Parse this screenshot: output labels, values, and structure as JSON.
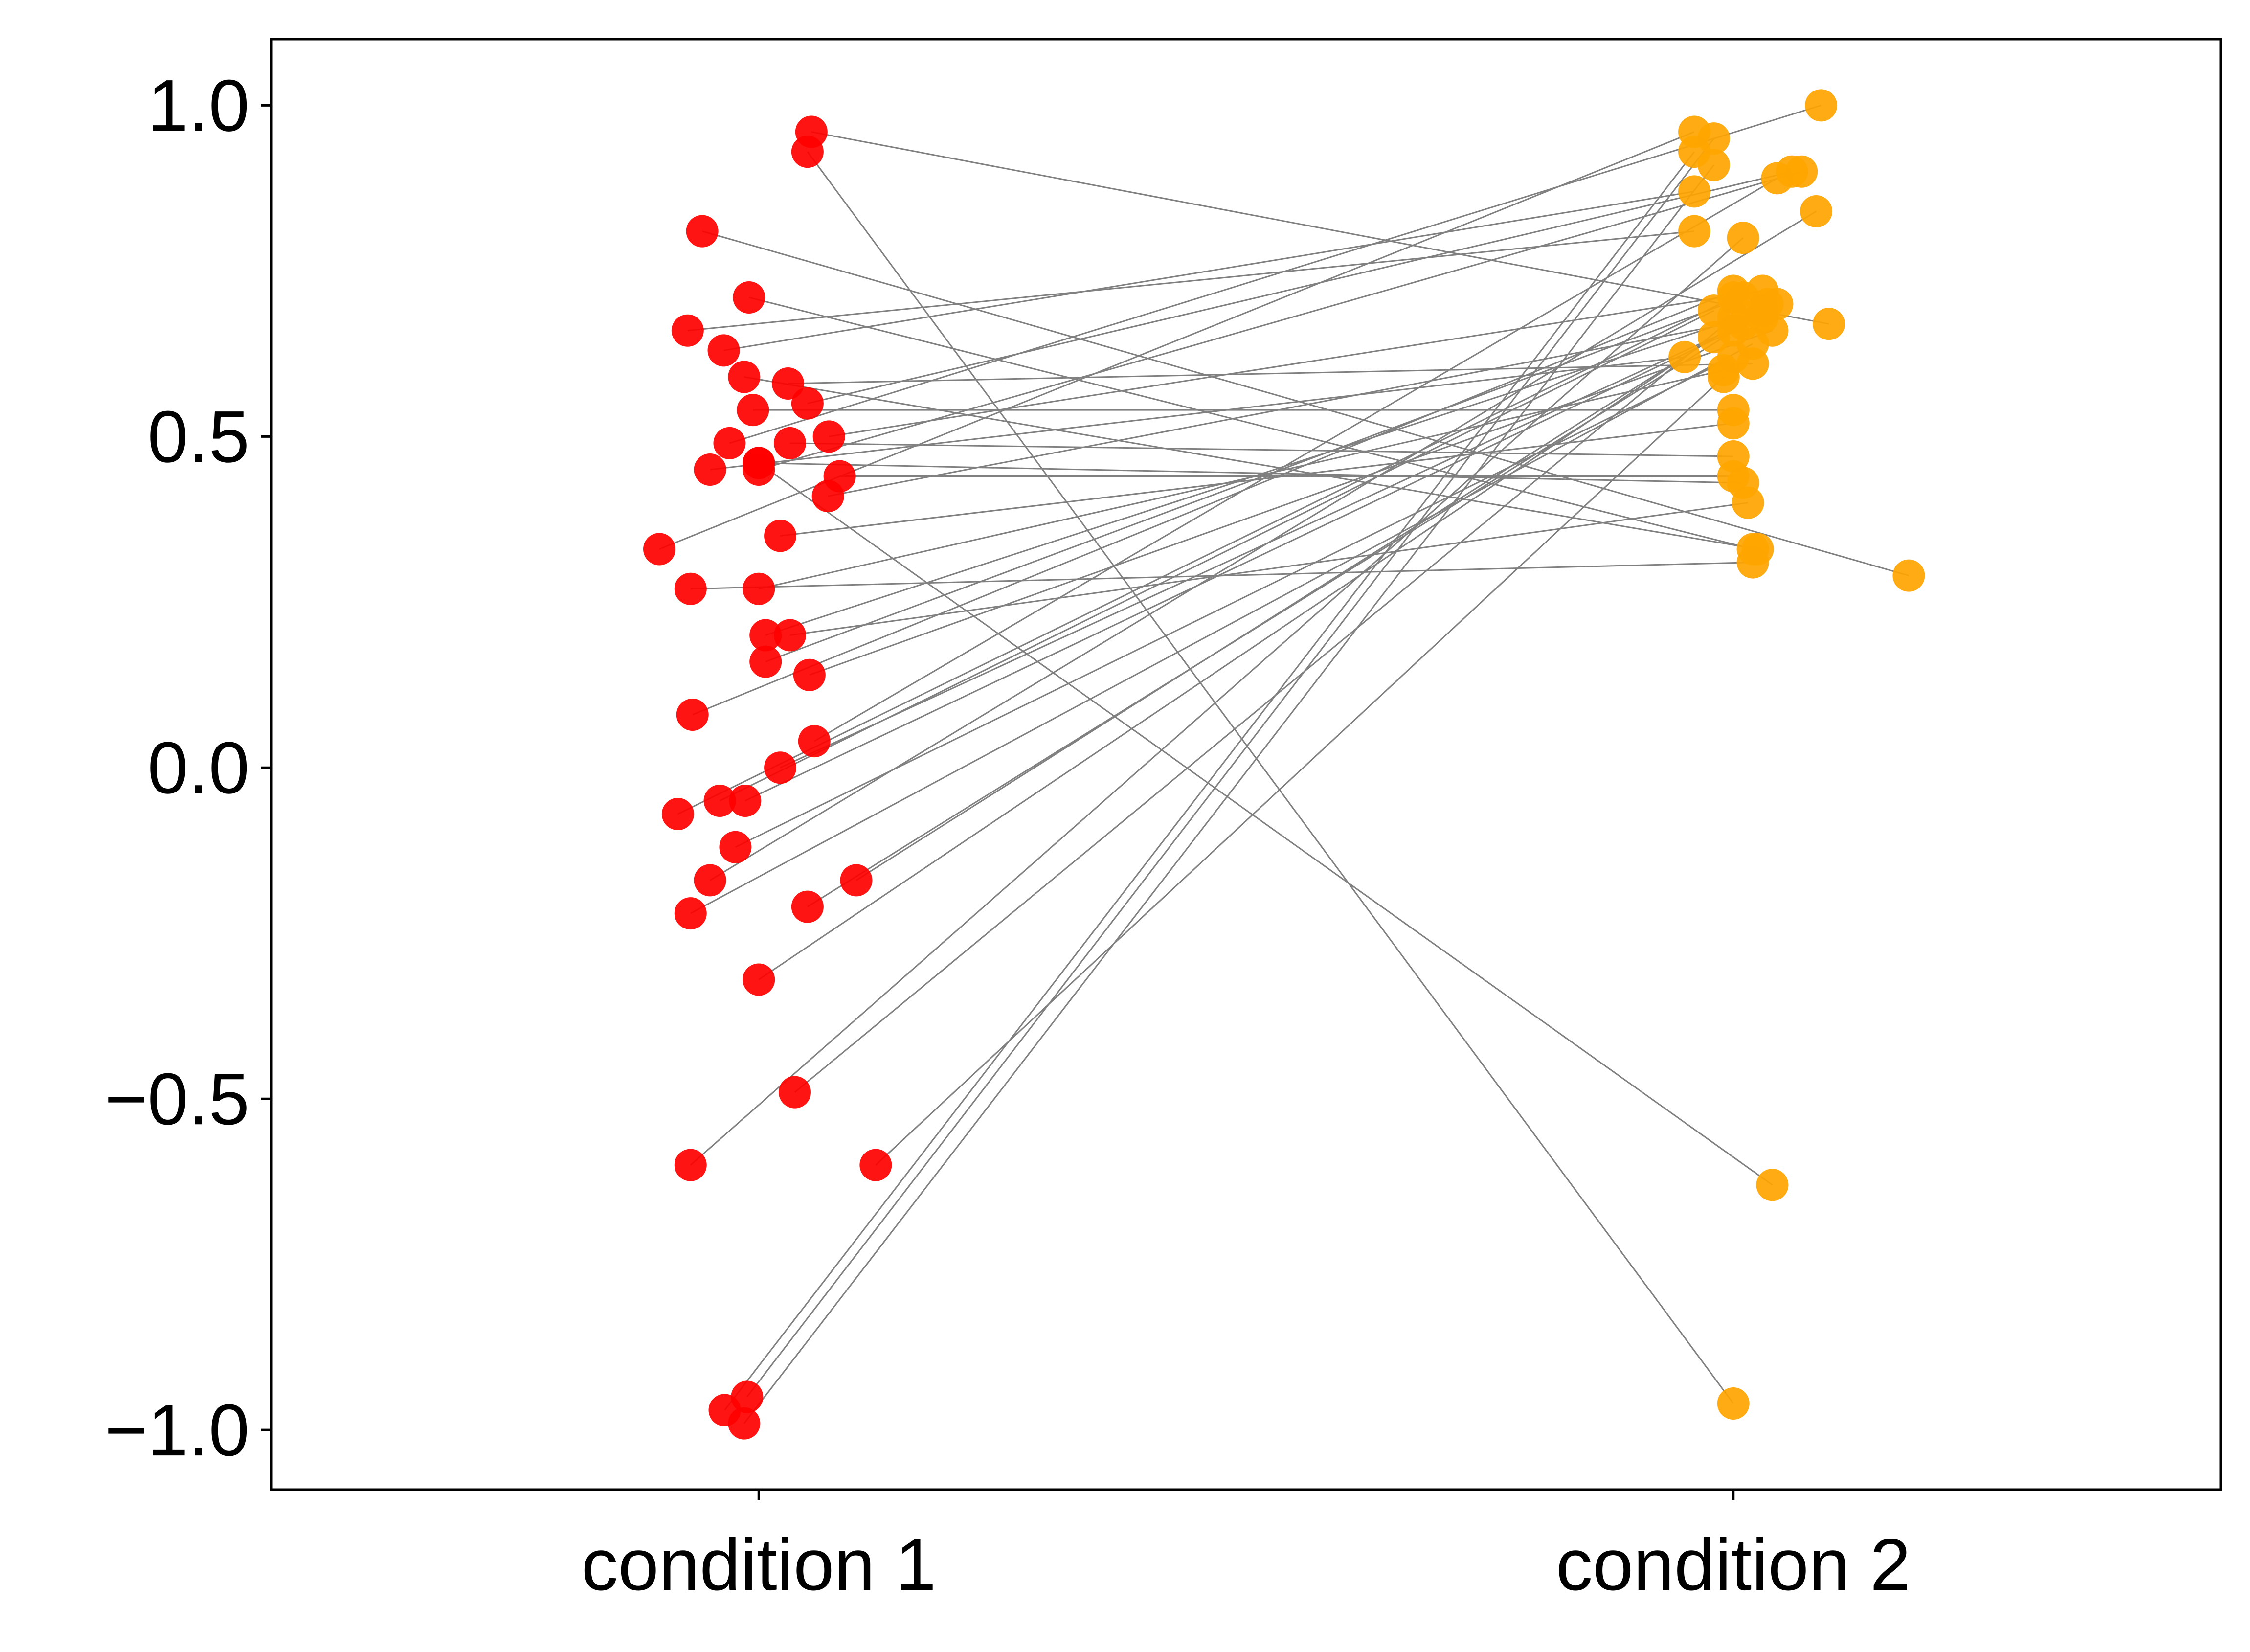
{
  "chart_data": {
    "type": "scatter",
    "title": "",
    "xlabel": "",
    "ylabel": "",
    "categories": [
      "condition 1",
      "condition 2"
    ],
    "xlim": [
      -0.5,
      1.5
    ],
    "ylim": [
      -1.09,
      1.1
    ],
    "yticks": [
      -1.0,
      -0.5,
      0.0,
      0.5,
      1.0
    ],
    "ytick_labels": [
      "−1.0",
      "−0.5",
      "0.0",
      "0.5",
      "1.0"
    ],
    "grid": false,
    "legend": "none",
    "colors": {
      "condition1": "#ff0000",
      "condition2": "#ffa500",
      "line": "#808080",
      "axis": "#000000"
    },
    "series": [
      {
        "points": [
          [
            0.054,
            0.96
          ],
          [
            1.098,
            0.67
          ]
        ]
      },
      {
        "points": [
          [
            -0.058,
            0.81
          ],
          [
            1.18,
            0.29
          ]
        ]
      },
      {
        "points": [
          [
            -0.01,
            0.71
          ],
          [
            1.02,
            0.33
          ]
        ]
      },
      {
        "points": [
          [
            -0.073,
            0.66
          ],
          [
            0.96,
            0.81
          ]
        ]
      },
      {
        "points": [
          [
            -0.036,
            0.63
          ],
          [
            0.96,
            0.87
          ]
        ]
      },
      {
        "points": [
          [
            -0.015,
            0.59
          ],
          [
            1.025,
            0.33
          ]
        ]
      },
      {
        "points": [
          [
            -0.006,
            0.54
          ],
          [
            1.0,
            0.54
          ]
        ]
      },
      {
        "points": [
          [
            0.072,
            0.5
          ],
          [
            1.03,
            0.72
          ]
        ]
      },
      {
        "points": [
          [
            0.032,
            0.49
          ],
          [
            1.0,
            0.47
          ]
        ]
      },
      {
        "points": [
          [
            0.0,
            0.45
          ],
          [
            1.07,
            0.9
          ]
        ]
      },
      {
        "points": [
          [
            0.083,
            0.44
          ],
          [
            1.0,
            0.44
          ]
        ]
      },
      {
        "points": [
          [
            0.071,
            0.41
          ],
          [
            1.03,
            0.68
          ]
        ]
      },
      {
        "points": [
          [
            0.022,
            0.35
          ],
          [
            1.0,
            0.52
          ]
        ]
      },
      {
        "points": [
          [
            -0.102,
            0.33
          ],
          [
            0.96,
            0.96
          ]
        ]
      },
      {
        "points": [
          [
            -0.07,
            0.27
          ],
          [
            1.02,
            0.31
          ]
        ]
      },
      {
        "points": [
          [
            0.0,
            0.27
          ],
          [
            0.99,
            0.6
          ]
        ]
      },
      {
        "points": [
          [
            0.007,
            0.2
          ],
          [
            1.03,
            0.69
          ]
        ]
      },
      {
        "points": [
          [
            0.032,
            0.2
          ],
          [
            1.015,
            0.4
          ]
        ]
      },
      {
        "points": [
          [
            0.007,
            0.16
          ],
          [
            1.01,
            0.71
          ]
        ]
      },
      {
        "points": [
          [
            0.052,
            0.14
          ],
          [
            1.04,
            0.66
          ]
        ]
      },
      {
        "points": [
          [
            -0.068,
            0.08
          ],
          [
            1.0,
            0.72
          ]
        ]
      },
      {
        "points": [
          [
            0.057,
            0.04
          ],
          [
            1.045,
            0.89
          ]
        ]
      },
      {
        "points": [
          [
            0.022,
            0.0
          ],
          [
            1.01,
            0.67
          ]
        ]
      },
      {
        "points": [
          [
            -0.083,
            -0.07
          ],
          [
            1.0,
            0.71
          ]
        ]
      },
      {
        "points": [
          [
            -0.04,
            -0.05
          ],
          [
            0.98,
            0.69
          ]
        ]
      },
      {
        "points": [
          [
            -0.014,
            -0.05
          ],
          [
            1.0,
            0.66
          ]
        ]
      },
      {
        "points": [
          [
            -0.024,
            -0.12
          ],
          [
            1.0,
            0.62
          ]
        ]
      },
      {
        "points": [
          [
            -0.05,
            -0.17
          ],
          [
            1.085,
            0.84
          ]
        ]
      },
      {
        "points": [
          [
            -0.07,
            -0.22
          ],
          [
            1.02,
            0.64
          ]
        ]
      },
      {
        "points": [
          [
            0.05,
            -0.21
          ],
          [
            1.045,
            0.7
          ]
        ]
      },
      {
        "points": [
          [
            0.1,
            -0.17
          ],
          [
            1.035,
            0.7
          ]
        ]
      },
      {
        "points": [
          [
            0.0,
            -0.32
          ],
          [
            0.98,
            0.65
          ]
        ]
      },
      {
        "points": [
          [
            0.037,
            -0.49
          ],
          [
            1.0,
            0.68
          ]
        ]
      },
      {
        "points": [
          [
            -0.07,
            -0.6
          ],
          [
            1.01,
            0.8
          ]
        ]
      },
      {
        "points": [
          [
            0.12,
            -0.6
          ],
          [
            0.99,
            0.59
          ]
        ]
      },
      {
        "points": [
          [
            -0.035,
            -0.97
          ],
          [
            0.96,
            0.93
          ]
        ]
      },
      {
        "points": [
          [
            -0.015,
            -0.99
          ],
          [
            0.98,
            0.91
          ]
        ]
      },
      {
        "points": [
          [
            -0.012,
            -0.95
          ],
          [
            0.98,
            0.95
          ]
        ]
      },
      {
        "points": [
          [
            0.0,
            0.46
          ],
          [
            1.04,
            -0.63
          ]
        ]
      },
      {
        "points": [
          [
            0.05,
            0.93
          ],
          [
            1.0,
            -0.96
          ]
        ]
      },
      {
        "points": [
          [
            -0.03,
            0.49
          ],
          [
            1.09,
            1.0
          ]
        ]
      },
      {
        "points": [
          [
            0.05,
            0.55
          ],
          [
            1.06,
            0.9
          ]
        ]
      },
      {
        "points": [
          [
            0.0,
            0.46
          ],
          [
            1.01,
            0.43
          ]
        ]
      },
      {
        "points": [
          [
            0.03,
            0.58
          ],
          [
            1.02,
            0.61
          ]
        ]
      },
      {
        "points": [
          [
            -0.05,
            0.45
          ],
          [
            0.95,
            0.62
          ]
        ]
      }
    ]
  }
}
